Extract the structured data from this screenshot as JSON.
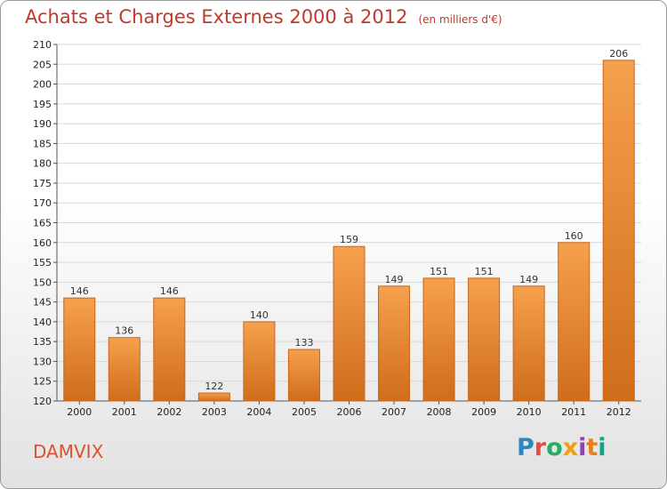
{
  "title": "Achats et Charges Externes 2000 à 2012",
  "unit": "(en milliers d'€)",
  "commune": "DAMVIX",
  "logo": "Proxiti",
  "colors": {
    "bar_top": "#f6a04e",
    "bar_bottom": "#cf6d1b",
    "title": "#c0392b",
    "grid": "#d8d8d8",
    "logo": [
      "#2e86c1",
      "#e74c3c",
      "#27ae60",
      "#f39c12",
      "#8e44ad",
      "#e67e22",
      "#16a085"
    ]
  },
  "chart_data": {
    "type": "bar",
    "title": "Achats et Charges Externes 2000 à 2012",
    "subtitle": "(en milliers d'€)",
    "categories": [
      "2000",
      "2001",
      "2002",
      "2003",
      "2004",
      "2005",
      "2006",
      "2007",
      "2008",
      "2009",
      "2010",
      "2011",
      "2012"
    ],
    "values": [
      146,
      136,
      146,
      122,
      140,
      133,
      159,
      149,
      151,
      151,
      149,
      160,
      206
    ],
    "ylim": [
      120,
      210
    ],
    "yticks": [
      120,
      125,
      130,
      135,
      140,
      145,
      150,
      155,
      160,
      165,
      170,
      175,
      180,
      185,
      190,
      195,
      200,
      205,
      210
    ],
    "grid": true,
    "xlabel": "",
    "ylabel": ""
  }
}
